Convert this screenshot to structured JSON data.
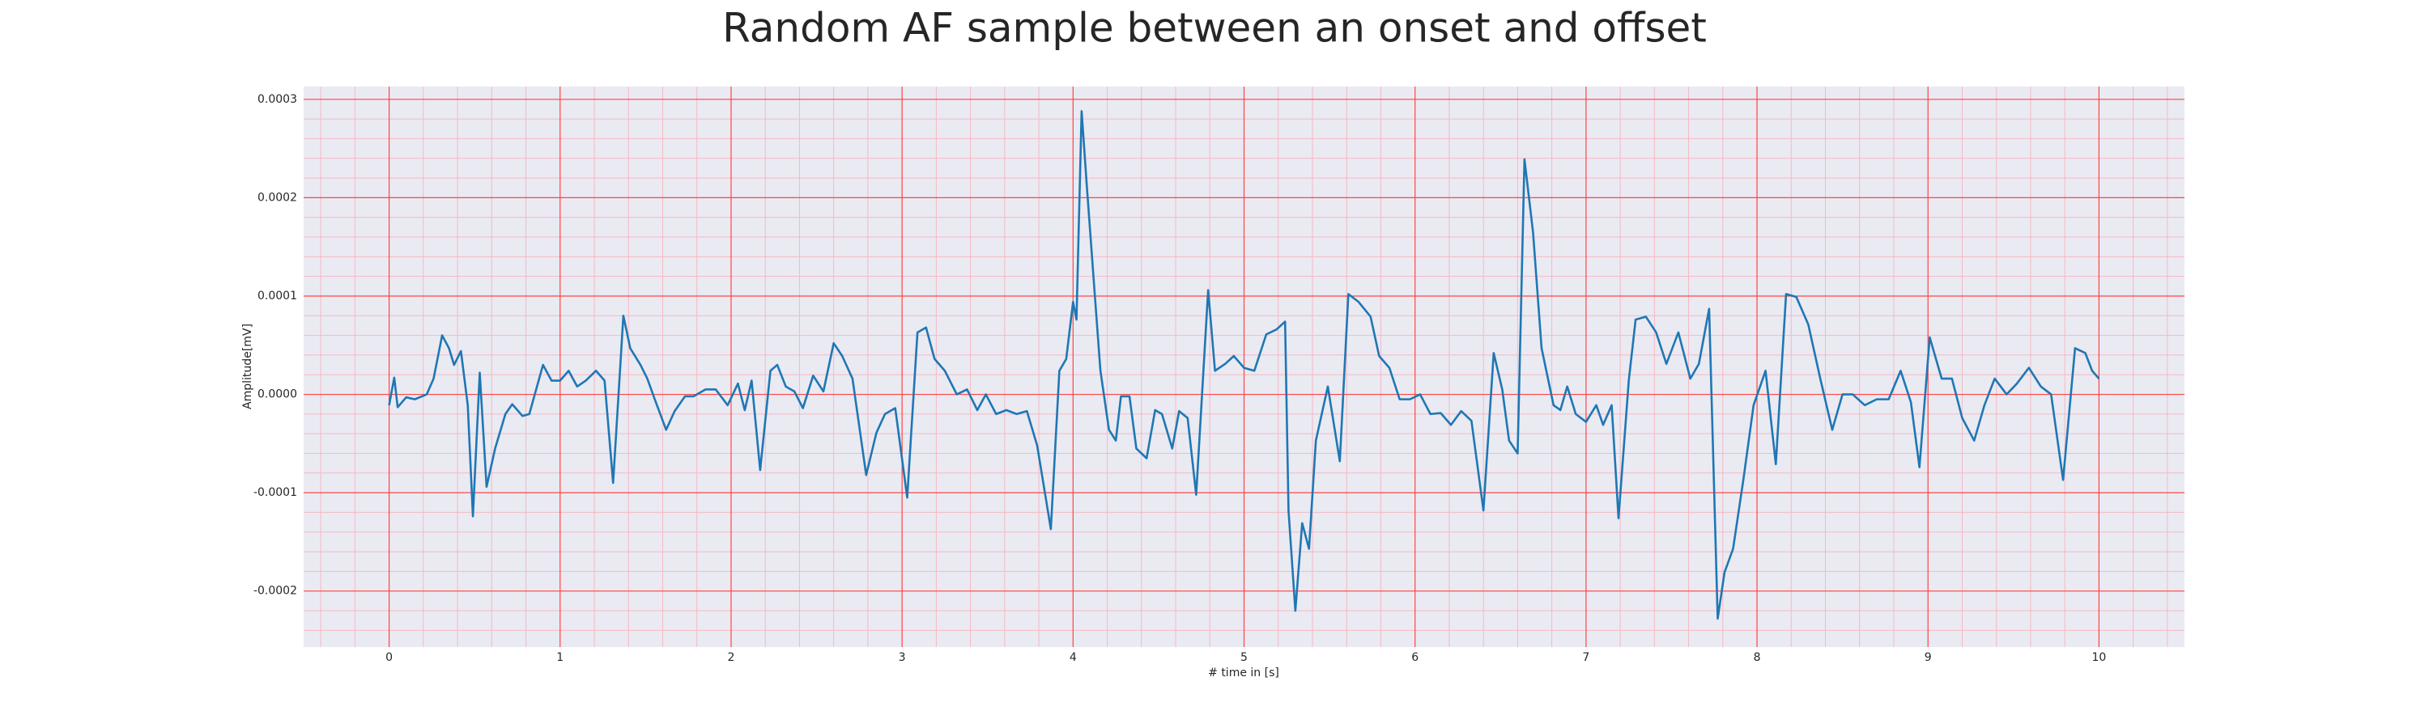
{
  "chart_data": {
    "type": "line",
    "title": "Random AF sample between an onset and offset",
    "xlabel": "# time in [s]",
    "ylabel": "Amplitude[mV]",
    "xlim": [
      -0.5,
      10.5
    ],
    "ylim": [
      -0.000257,
      0.000313
    ],
    "xticks": [
      0,
      1,
      2,
      3,
      4,
      5,
      6,
      7,
      8,
      9,
      10
    ],
    "yticks": [
      {
        "value": -0.0002,
        "label": "-0.0002"
      },
      {
        "value": -0.0001,
        "label": "-0.0001"
      },
      {
        "value": 0,
        "label": "0.0000"
      },
      {
        "value": 0.0001,
        "label": "0.0001"
      },
      {
        "value": 0.0002,
        "label": "0.0002"
      },
      {
        "value": 0.0003,
        "label": "0.0003"
      }
    ],
    "grid": true,
    "minor_grid": true,
    "grid_color": "#ff4444",
    "minor_grid_color": "#f5b8c4",
    "background": "#eaeaf2",
    "series": [
      {
        "color": "#1f77b4",
        "x": [
          0,
          0.03,
          0.05,
          0.1,
          0.15,
          0.22,
          0.26,
          0.31,
          0.35,
          0.38,
          0.42,
          0.46,
          0.49,
          0.53,
          0.57,
          0.62,
          0.68,
          0.72,
          0.78,
          0.82,
          0.9,
          0.95,
          1.0,
          1.05,
          1.1,
          1.15,
          1.21,
          1.26,
          1.31,
          1.37,
          1.41,
          1.47,
          1.51,
          1.56,
          1.62,
          1.67,
          1.73,
          1.78,
          1.85,
          1.91,
          1.98,
          2.04,
          2.08,
          2.12,
          2.17,
          2.23,
          2.27,
          2.32,
          2.37,
          2.42,
          2.48,
          2.54,
          2.6,
          2.65,
          2.71,
          2.79,
          2.85,
          2.9,
          2.96,
          3.03,
          3.09,
          3.14,
          3.19,
          3.25,
          3.32,
          3.38,
          3.44,
          3.49,
          3.55,
          3.61,
          3.67,
          3.73,
          3.79,
          3.84,
          3.87,
          3.92,
          3.96,
          4.0,
          4.02,
          4.05,
          4.08,
          4.12,
          4.16,
          4.21,
          4.25,
          4.28,
          4.33,
          4.37,
          4.43,
          4.48,
          4.52,
          4.58,
          4.62,
          4.67,
          4.72,
          4.79,
          4.83,
          4.89,
          4.94,
          5.0,
          5.06,
          5.13,
          5.19,
          5.24,
          5.26,
          5.3,
          5.34,
          5.38,
          5.42,
          5.49,
          5.56,
          5.61,
          5.67,
          5.74,
          5.79,
          5.85,
          5.91,
          5.97,
          6.03,
          6.09,
          6.15,
          6.21,
          6.27,
          6.33,
          6.4,
          6.46,
          6.51,
          6.55,
          6.6,
          6.64,
          6.69,
          6.74,
          6.81,
          6.85,
          6.89,
          6.94,
          7.0,
          7.06,
          7.1,
          7.15,
          7.19,
          7.25,
          7.29,
          7.35,
          7.41,
          7.47,
          7.54,
          7.61,
          7.66,
          7.72,
          7.77,
          7.81,
          7.86,
          7.92,
          7.98,
          8.05,
          8.11,
          8.17,
          8.23,
          8.3,
          8.37,
          8.44,
          8.5,
          8.56,
          8.63,
          8.7,
          8.77,
          8.84,
          8.9,
          8.95,
          9.01,
          9.08,
          9.14,
          9.2,
          9.27,
          9.33,
          9.39,
          9.46,
          9.52,
          9.59,
          9.66,
          9.72,
          9.79,
          9.86,
          9.92,
          9.96,
          10.0
        ],
        "values": [
          -1.1e-05,
          1.7e-05,
          -1.3e-05,
          -3e-06,
          -5e-06,
          0,
          1.6e-05,
          6e-05,
          4.7e-05,
          3e-05,
          4.4e-05,
          -1.1e-05,
          -0.000124,
          2.2e-05,
          -9.4e-05,
          -5.5e-05,
          -2e-05,
          -1e-05,
          -2.2e-05,
          -2e-05,
          3e-05,
          1.4e-05,
          1.4e-05,
          2.4e-05,
          8e-06,
          1.4e-05,
          2.4e-05,
          1.4e-05,
          -9e-05,
          8e-05,
          4.7e-05,
          3e-05,
          1.6e-05,
          -8e-06,
          -3.6e-05,
          -1.7e-05,
          -2e-06,
          -2e-06,
          5e-06,
          5e-06,
          -1.1e-05,
          1.1e-05,
          -1.6e-05,
          1.4e-05,
          -7.7e-05,
          2.4e-05,
          3e-05,
          8e-06,
          3e-06,
          -1.4e-05,
          1.9e-05,
          3e-06,
          5.2e-05,
          3.9e-05,
          1.6e-05,
          -8.2e-05,
          -3.9e-05,
          -2e-05,
          -1.4e-05,
          -0.000105,
          6.3e-05,
          6.8e-05,
          3.6e-05,
          2.4e-05,
          0,
          5e-06,
          -1.6e-05,
          0,
          -2e-05,
          -1.6e-05,
          -2e-05,
          -1.7e-05,
          -5.2e-05,
          -0.000105,
          -0.000137,
          2.4e-05,
          3.6e-05,
          9.4e-05,
          7.6e-05,
          0.000288,
          0.000213,
          0.000118,
          2.4e-05,
          -3.6e-05,
          -4.7e-05,
          -2e-06,
          -2e-06,
          -5.5e-05,
          -6.5e-05,
          -1.6e-05,
          -2e-05,
          -5.5e-05,
          -1.7e-05,
          -2.4e-05,
          -0.000102,
          0.000106,
          2.4e-05,
          3.1e-05,
          3.9e-05,
          2.7e-05,
          2.4e-05,
          6.1e-05,
          6.6e-05,
          7.4e-05,
          -0.000118,
          -0.00022,
          -0.000131,
          -0.000157,
          -4.7e-05,
          8e-06,
          -6.8e-05,
          0.000102,
          9.4e-05,
          7.9e-05,
          3.9e-05,
          2.7e-05,
          -5e-06,
          -5e-06,
          0,
          -2e-05,
          -1.9e-05,
          -3.1e-05,
          -1.7e-05,
          -2.7e-05,
          -0.000118,
          4.2e-05,
          5e-06,
          -4.7e-05,
          -6e-05,
          0.000239,
          0.000165,
          4.7e-05,
          -1.1e-05,
          -1.6e-05,
          8e-06,
          -2e-05,
          -2.8e-05,
          -1.1e-05,
          -3.1e-05,
          -1.1e-05,
          -0.000126,
          1.4e-05,
          7.6e-05,
          7.9e-05,
          6.3e-05,
          3.1e-05,
          6.3e-05,
          1.6e-05,
          3.1e-05,
          8.7e-05,
          -0.000228,
          -0.000181,
          -0.000157,
          -8.7e-05,
          -1.1e-05,
          2.4e-05,
          -7.1e-05,
          0.000102,
          9.9e-05,
          7.1e-05,
          1.6e-05,
          -3.6e-05,
          0,
          0,
          -1.1e-05,
          -5e-06,
          -5e-06,
          2.4e-05,
          -8e-06,
          -7.4e-05,
          5.8e-05,
          1.6e-05,
          1.6e-05,
          -2.4e-05,
          -4.7e-05,
          -1.1e-05,
          1.6e-05,
          0,
          1.1e-05,
          2.7e-05,
          8e-06,
          0,
          -8.7e-05,
          4.7e-05,
          4.2e-05,
          2.4e-05,
          1.6e-05
        ]
      }
    ]
  }
}
